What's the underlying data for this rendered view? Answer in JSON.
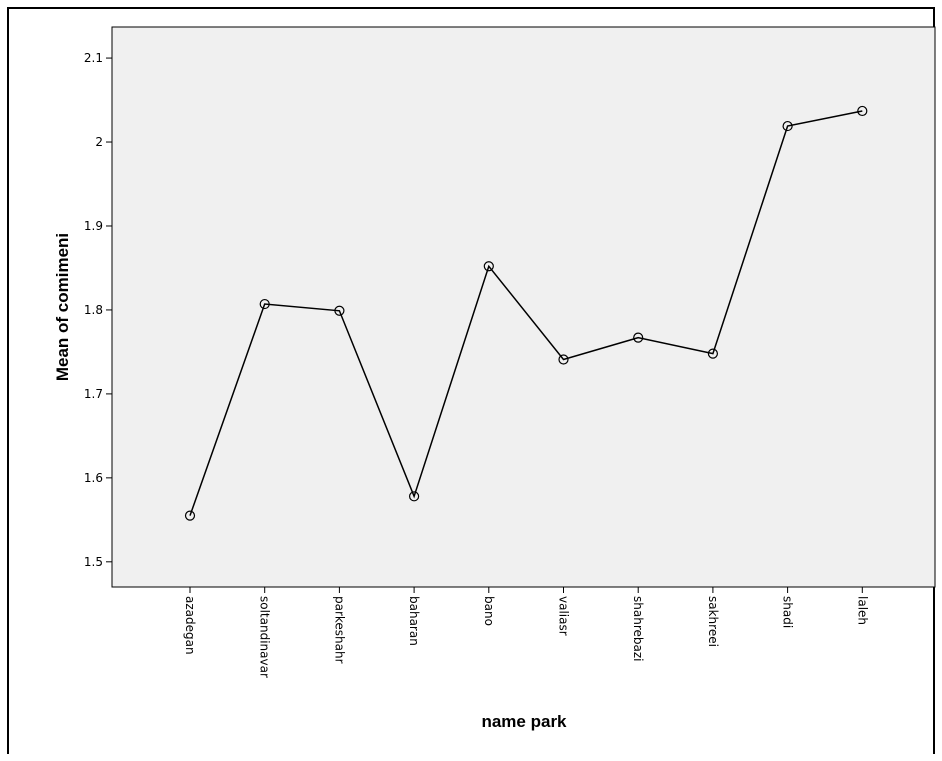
{
  "chart_data": {
    "type": "line",
    "xlabel": "name park",
    "ylabel": "Mean of comimeni",
    "categories": [
      "azadegan",
      "soltandinavar",
      "parkeshahr",
      "baharan",
      "bano",
      "valiasr",
      "shahrebazi",
      "sakhreei",
      "shadi",
      "laleh"
    ],
    "values": [
      1.555,
      1.807,
      1.799,
      1.578,
      1.852,
      1.741,
      1.767,
      1.748,
      2.019,
      2.037
    ],
    "y_ticks": [
      "1.5",
      "1.6",
      "1.7",
      "1.8",
      "1.9",
      "2",
      "2.1"
    ],
    "ylim": [
      1.47,
      2.137
    ],
    "grid": false,
    "colors": {
      "plot_background": "#f0f0f0",
      "line": "#000000"
    }
  }
}
